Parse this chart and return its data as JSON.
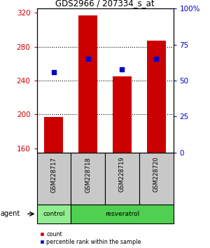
{
  "title": "GDS2966 / 207334_s_at",
  "samples": [
    "GSM228717",
    "GSM228718",
    "GSM228719",
    "GSM228720"
  ],
  "counts": [
    197,
    317,
    245,
    287
  ],
  "percentiles_pct": [
    56,
    65,
    58,
    65
  ],
  "ylim_left": [
    155,
    325
  ],
  "yticks_left": [
    160,
    200,
    240,
    280,
    320
  ],
  "ylim_right": [
    0,
    100
  ],
  "yticks_right": [
    0,
    25,
    50,
    75,
    100
  ],
  "bar_color": "#cc0000",
  "bar_bottom": 155,
  "dot_color": "#0000cc",
  "agent_labels": [
    "control",
    "resveratrol"
  ],
  "agent_colors": [
    "#90ee90",
    "#50d050"
  ],
  "sample_box_color": "#c8c8c8",
  "bar_width": 0.55,
  "left_tick_color": "#cc0000",
  "right_tick_color": "#0000cc",
  "grid_yticks": [
    200,
    240,
    280
  ]
}
